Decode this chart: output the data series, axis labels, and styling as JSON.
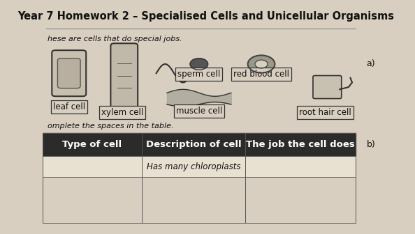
{
  "title": "Year 7 Homework 2 – Specialised Cells and Unicellular Organisms",
  "subtitle": "hese are cells that do special jobs.",
  "instruction": "omplete the spaces in the table.",
  "table_header": [
    "Type of cell",
    "Description of cell",
    "The job the cell does"
  ],
  "table_row1": [
    "",
    "Has many chloroplasts",
    ""
  ],
  "labels": {
    "leaf_cell": "leaf cell",
    "xylem_cell": "xylem cell",
    "sperm_cell": "sperm cell",
    "red_blood_cell": "red blood cell",
    "muscle_cell": "muscle cell",
    "root_hair_cell": "root hair cell"
  },
  "side_labels": {
    "a": "a)",
    "b": "b)"
  },
  "bg_color": "#d8cfc0",
  "header_bg": "#2b2b2b",
  "header_fg": "#ffffff",
  "table_line_color": "#555555",
  "title_fontsize": 10.5,
  "label_fontsize": 8.5,
  "table_header_fontsize": 9.5,
  "table_cell_fontsize": 8.5,
  "fig_width": 5.94,
  "fig_height": 3.36
}
